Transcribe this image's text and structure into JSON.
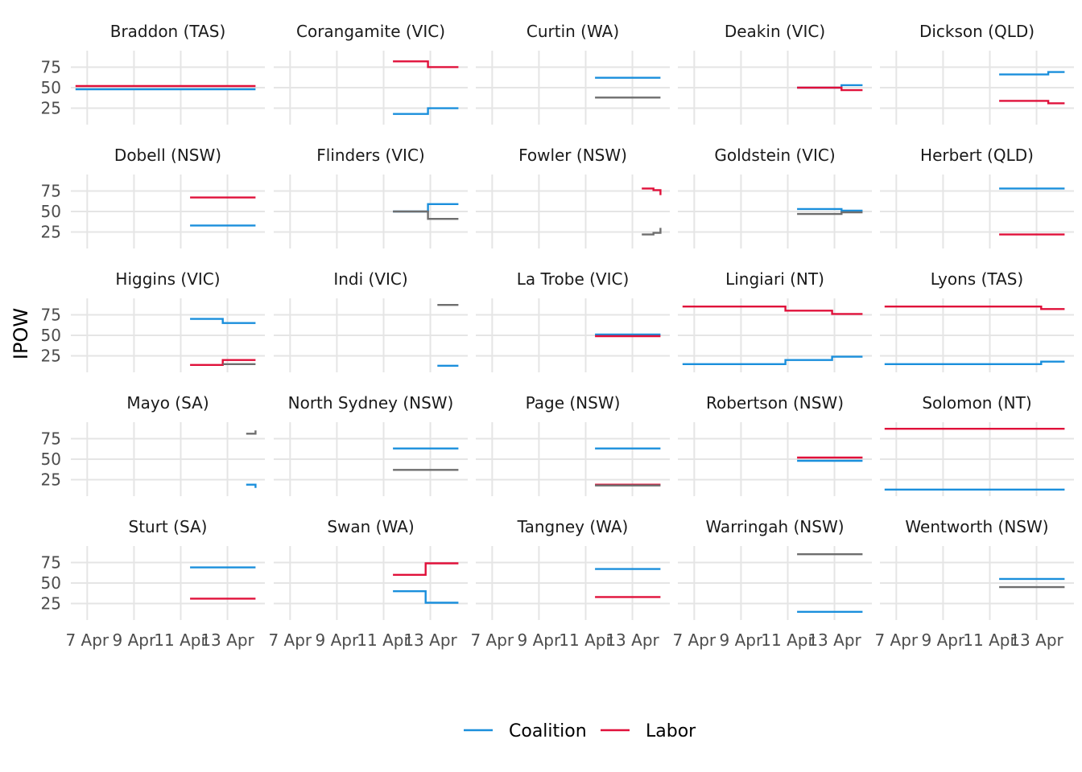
{
  "chart_data": {
    "type": "line",
    "step": true,
    "layout": "facet_wrap",
    "ylabel": "IPOW",
    "xlabel": "",
    "ylim": [
      5,
      95
    ],
    "yticks": [
      25,
      50,
      75
    ],
    "xlim": [
      6.3,
      14.6
    ],
    "xticks": [
      {
        "value": 7,
        "label": "7 Apr"
      },
      {
        "value": 9,
        "label": "9 Apr"
      },
      {
        "value": 11,
        "label": "11 Apr"
      },
      {
        "value": 13,
        "label": "13 Apr"
      }
    ],
    "grid": true,
    "legend_position": "bottom",
    "colors": {
      "Coalition": "#1a8fdc",
      "Labor": "#e0103a",
      "Other": "#6e6e6e"
    },
    "legend": [
      {
        "name": "Coalition",
        "color": "#1a8fdc"
      },
      {
        "name": "Labor",
        "color": "#e0103a"
      }
    ],
    "panels": [
      {
        "title": "Braddon (TAS)",
        "series": [
          {
            "group": "Coalition",
            "points": [
              [
                6.5,
                48
              ],
              [
                14.2,
                48
              ]
            ]
          },
          {
            "group": "Labor",
            "points": [
              [
                6.5,
                52
              ],
              [
                14.2,
                52
              ]
            ]
          }
        ]
      },
      {
        "title": "Corangamite (VIC)",
        "series": [
          {
            "group": "Coalition",
            "points": [
              [
                11.4,
                18
              ],
              [
                12.9,
                25
              ],
              [
                14.2,
                25
              ]
            ]
          },
          {
            "group": "Labor",
            "points": [
              [
                11.4,
                82
              ],
              [
                12.9,
                75
              ],
              [
                14.2,
                75
              ]
            ]
          }
        ]
      },
      {
        "title": "Curtin (WA)",
        "series": [
          {
            "group": "Coalition",
            "points": [
              [
                11.4,
                62
              ],
              [
                14.2,
                62
              ]
            ]
          },
          {
            "group": "Other",
            "points": [
              [
                11.4,
                38
              ],
              [
                14.2,
                38
              ]
            ]
          }
        ]
      },
      {
        "title": "Deakin (VIC)",
        "series": [
          {
            "group": "Coalition",
            "points": [
              [
                11.4,
                50
              ],
              [
                13.3,
                53
              ],
              [
                14.2,
                53
              ]
            ]
          },
          {
            "group": "Labor",
            "points": [
              [
                11.4,
                50
              ],
              [
                13.3,
                47
              ],
              [
                14.2,
                47
              ]
            ]
          }
        ]
      },
      {
        "title": "Dickson (QLD)",
        "series": [
          {
            "group": "Coalition",
            "points": [
              [
                11.4,
                66
              ],
              [
                13.5,
                69
              ],
              [
                14.2,
                69
              ]
            ]
          },
          {
            "group": "Labor",
            "points": [
              [
                11.4,
                34
              ],
              [
                13.5,
                31
              ],
              [
                14.2,
                31
              ]
            ]
          }
        ]
      },
      {
        "title": "Dobell (NSW)",
        "series": [
          {
            "group": "Coalition",
            "points": [
              [
                11.4,
                33
              ],
              [
                14.2,
                33
              ]
            ]
          },
          {
            "group": "Labor",
            "points": [
              [
                11.4,
                67
              ],
              [
                14.2,
                67
              ]
            ]
          }
        ]
      },
      {
        "title": "Flinders (VIC)",
        "series": [
          {
            "group": "Coalition",
            "points": [
              [
                11.4,
                50
              ],
              [
                12.9,
                59
              ],
              [
                14.2,
                59
              ]
            ]
          },
          {
            "group": "Other",
            "points": [
              [
                11.4,
                50
              ],
              [
                12.9,
                41
              ],
              [
                14.2,
                41
              ]
            ]
          }
        ]
      },
      {
        "title": "Fowler (NSW)",
        "series": [
          {
            "group": "Labor",
            "points": [
              [
                13.4,
                78
              ],
              [
                13.9,
                76
              ],
              [
                14.2,
                70
              ]
            ]
          },
          {
            "group": "Other",
            "points": [
              [
                13.4,
                22
              ],
              [
                13.9,
                24
              ],
              [
                14.2,
                30
              ]
            ]
          }
        ]
      },
      {
        "title": "Goldstein (VIC)",
        "series": [
          {
            "group": "Coalition",
            "points": [
              [
                11.4,
                53
              ],
              [
                13.3,
                51
              ],
              [
                14.2,
                51
              ]
            ]
          },
          {
            "group": "Other",
            "points": [
              [
                11.4,
                47
              ],
              [
                13.3,
                49
              ],
              [
                14.2,
                49
              ]
            ]
          }
        ]
      },
      {
        "title": "Herbert (QLD)",
        "series": [
          {
            "group": "Coalition",
            "points": [
              [
                11.4,
                78
              ],
              [
                14.2,
                78
              ]
            ]
          },
          {
            "group": "Labor",
            "points": [
              [
                11.4,
                22
              ],
              [
                14.2,
                22
              ]
            ]
          }
        ]
      },
      {
        "title": "Higgins (VIC)",
        "series": [
          {
            "group": "Coalition",
            "points": [
              [
                11.4,
                70
              ],
              [
                12.8,
                65
              ],
              [
                14.2,
                65
              ]
            ]
          },
          {
            "group": "Labor",
            "points": [
              [
                11.4,
                14
              ],
              [
                12.8,
                20
              ],
              [
                14.2,
                20
              ]
            ]
          },
          {
            "group": "Other",
            "points": [
              [
                12.8,
                15
              ],
              [
                14.2,
                15
              ]
            ]
          }
        ]
      },
      {
        "title": "Indi (VIC)",
        "series": [
          {
            "group": "Coalition",
            "points": [
              [
                13.3,
                13
              ],
              [
                14.2,
                13
              ]
            ]
          },
          {
            "group": "Other",
            "points": [
              [
                13.3,
                87
              ],
              [
                14.2,
                87
              ]
            ]
          }
        ]
      },
      {
        "title": "La Trobe (VIC)",
        "series": [
          {
            "group": "Coalition",
            "points": [
              [
                11.4,
                51
              ],
              [
                14.2,
                51
              ]
            ]
          },
          {
            "group": "Labor",
            "points": [
              [
                11.4,
                49
              ],
              [
                14.2,
                49
              ]
            ]
          }
        ]
      },
      {
        "title": "Lingiari (NT)",
        "series": [
          {
            "group": "Coalition",
            "points": [
              [
                6.5,
                15
              ],
              [
                10.9,
                20
              ],
              [
                12.9,
                24
              ],
              [
                14.2,
                24
              ]
            ]
          },
          {
            "group": "Labor",
            "points": [
              [
                6.5,
                85
              ],
              [
                10.9,
                80
              ],
              [
                12.9,
                76
              ],
              [
                14.2,
                76
              ]
            ]
          }
        ]
      },
      {
        "title": "Lyons (TAS)",
        "series": [
          {
            "group": "Coalition",
            "points": [
              [
                6.5,
                15
              ],
              [
                13.2,
                18
              ],
              [
                14.2,
                18
              ]
            ]
          },
          {
            "group": "Labor",
            "points": [
              [
                6.5,
                85
              ],
              [
                13.2,
                82
              ],
              [
                14.2,
                82
              ]
            ]
          }
        ]
      },
      {
        "title": "Mayo (SA)",
        "series": [
          {
            "group": "Coalition",
            "points": [
              [
                13.8,
                19
              ],
              [
                14.2,
                15
              ]
            ]
          },
          {
            "group": "Other",
            "points": [
              [
                13.8,
                81
              ],
              [
                14.2,
                85
              ]
            ]
          }
        ]
      },
      {
        "title": "North Sydney (NSW)",
        "series": [
          {
            "group": "Coalition",
            "points": [
              [
                11.4,
                63
              ],
              [
                14.2,
                63
              ]
            ]
          },
          {
            "group": "Other",
            "points": [
              [
                11.4,
                37
              ],
              [
                14.2,
                37
              ]
            ]
          }
        ]
      },
      {
        "title": "Page (NSW)",
        "series": [
          {
            "group": "Coalition",
            "points": [
              [
                11.4,
                63
              ],
              [
                14.2,
                63
              ]
            ]
          },
          {
            "group": "Labor",
            "points": [
              [
                11.4,
                19
              ],
              [
                14.2,
                19
              ]
            ]
          },
          {
            "group": "Other",
            "points": [
              [
                11.4,
                18
              ],
              [
                14.2,
                18
              ]
            ]
          }
        ]
      },
      {
        "title": "Robertson (NSW)",
        "series": [
          {
            "group": "Coalition",
            "points": [
              [
                11.4,
                48
              ],
              [
                14.2,
                48
              ]
            ]
          },
          {
            "group": "Labor",
            "points": [
              [
                11.4,
                52
              ],
              [
                14.2,
                52
              ]
            ]
          }
        ]
      },
      {
        "title": "Solomon (NT)",
        "series": [
          {
            "group": "Coalition",
            "points": [
              [
                6.5,
                13
              ],
              [
                14.2,
                13
              ]
            ]
          },
          {
            "group": "Labor",
            "points": [
              [
                6.5,
                87
              ],
              [
                14.2,
                87
              ]
            ]
          }
        ]
      },
      {
        "title": "Sturt (SA)",
        "series": [
          {
            "group": "Coalition",
            "points": [
              [
                11.4,
                69
              ],
              [
                14.2,
                69
              ]
            ]
          },
          {
            "group": "Labor",
            "points": [
              [
                11.4,
                31
              ],
              [
                14.2,
                31
              ]
            ]
          }
        ]
      },
      {
        "title": "Swan (WA)",
        "series": [
          {
            "group": "Coalition",
            "points": [
              [
                11.4,
                40
              ],
              [
                12.8,
                26
              ],
              [
                14.2,
                26
              ]
            ]
          },
          {
            "group": "Labor",
            "points": [
              [
                11.4,
                60
              ],
              [
                12.8,
                74
              ],
              [
                14.2,
                74
              ]
            ]
          }
        ]
      },
      {
        "title": "Tangney (WA)",
        "series": [
          {
            "group": "Coalition",
            "points": [
              [
                11.4,
                67
              ],
              [
                14.2,
                67
              ]
            ]
          },
          {
            "group": "Labor",
            "points": [
              [
                11.4,
                33
              ],
              [
                14.2,
                33
              ]
            ]
          }
        ]
      },
      {
        "title": "Warringah (NSW)",
        "series": [
          {
            "group": "Coalition",
            "points": [
              [
                11.4,
                15
              ],
              [
                14.2,
                15
              ]
            ]
          },
          {
            "group": "Other",
            "points": [
              [
                11.4,
                85
              ],
              [
                14.2,
                85
              ]
            ]
          }
        ]
      },
      {
        "title": "Wentworth (NSW)",
        "series": [
          {
            "group": "Coalition",
            "points": [
              [
                11.4,
                55
              ],
              [
                14.2,
                55
              ]
            ]
          },
          {
            "group": "Other",
            "points": [
              [
                11.4,
                45
              ],
              [
                14.2,
                45
              ]
            ]
          }
        ]
      }
    ]
  }
}
